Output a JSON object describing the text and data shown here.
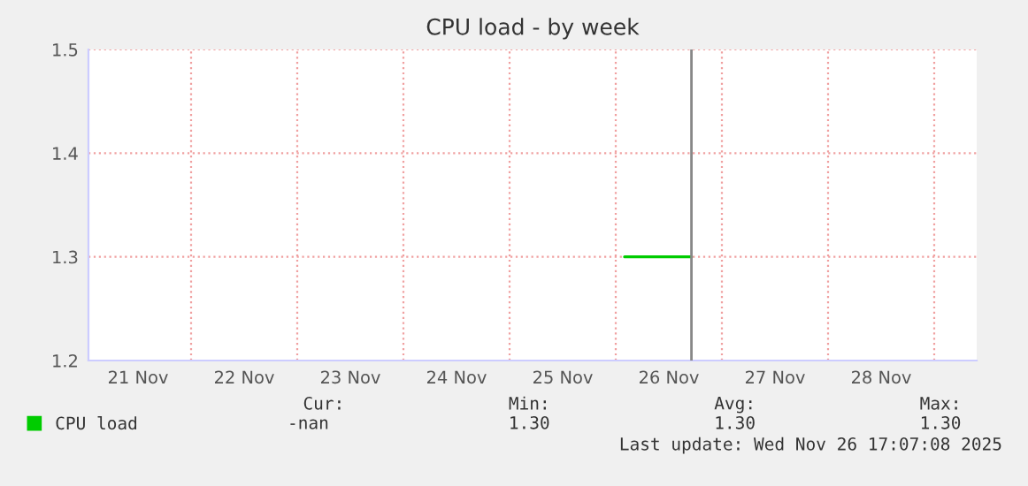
{
  "chart_data": {
    "type": "line",
    "title": "CPU load - by week",
    "series": [
      {
        "name": "CPU load",
        "color": "#00cc00",
        "x": [
          "2025-11-26T02:00",
          "2025-11-26T17:07"
        ],
        "values": [
          1.3,
          1.3
        ]
      }
    ],
    "xlim": [
      "2025-11-21T00:48",
      "2025-11-29T09:36"
    ],
    "xticks": [
      {
        "value": "2025-11-21T12:00",
        "label": "21 Nov"
      },
      {
        "value": "2025-11-22T00:00",
        "label": null
      },
      {
        "value": "2025-11-22T12:00",
        "label": "22 Nov"
      },
      {
        "value": "2025-11-23T00:00",
        "label": null
      },
      {
        "value": "2025-11-23T12:00",
        "label": "23 Nov"
      },
      {
        "value": "2025-11-24T00:00",
        "label": null
      },
      {
        "value": "2025-11-24T12:00",
        "label": "24 Nov"
      },
      {
        "value": "2025-11-25T00:00",
        "label": null
      },
      {
        "value": "2025-11-25T12:00",
        "label": "25 Nov"
      },
      {
        "value": "2025-11-26T00:00",
        "label": null
      },
      {
        "value": "2025-11-26T12:00",
        "label": "26 Nov"
      },
      {
        "value": "2025-11-27T00:00",
        "label": null
      },
      {
        "value": "2025-11-27T12:00",
        "label": "27 Nov"
      },
      {
        "value": "2025-11-28T00:00",
        "label": null
      },
      {
        "value": "2025-11-28T12:00",
        "label": "28 Nov"
      },
      {
        "value": "2025-11-29T00:00",
        "label": null
      }
    ],
    "ylim": [
      1.2,
      1.5
    ],
    "yticks": [
      1.2,
      1.3,
      1.4,
      1.5
    ],
    "grid": true,
    "legend": "bottom left",
    "line_style": "solid",
    "ref_lines": [
      {
        "axis": "x",
        "value": "2025-11-26T17:07",
        "color": "#888888"
      }
    ],
    "annotations": [
      "Cur:",
      "Min:",
      "Avg:",
      "Max:",
      "-nan",
      "1.30",
      "1.30",
      "1.30",
      "Last update: Wed Nov 26 17:07:08 2025"
    ]
  }
}
